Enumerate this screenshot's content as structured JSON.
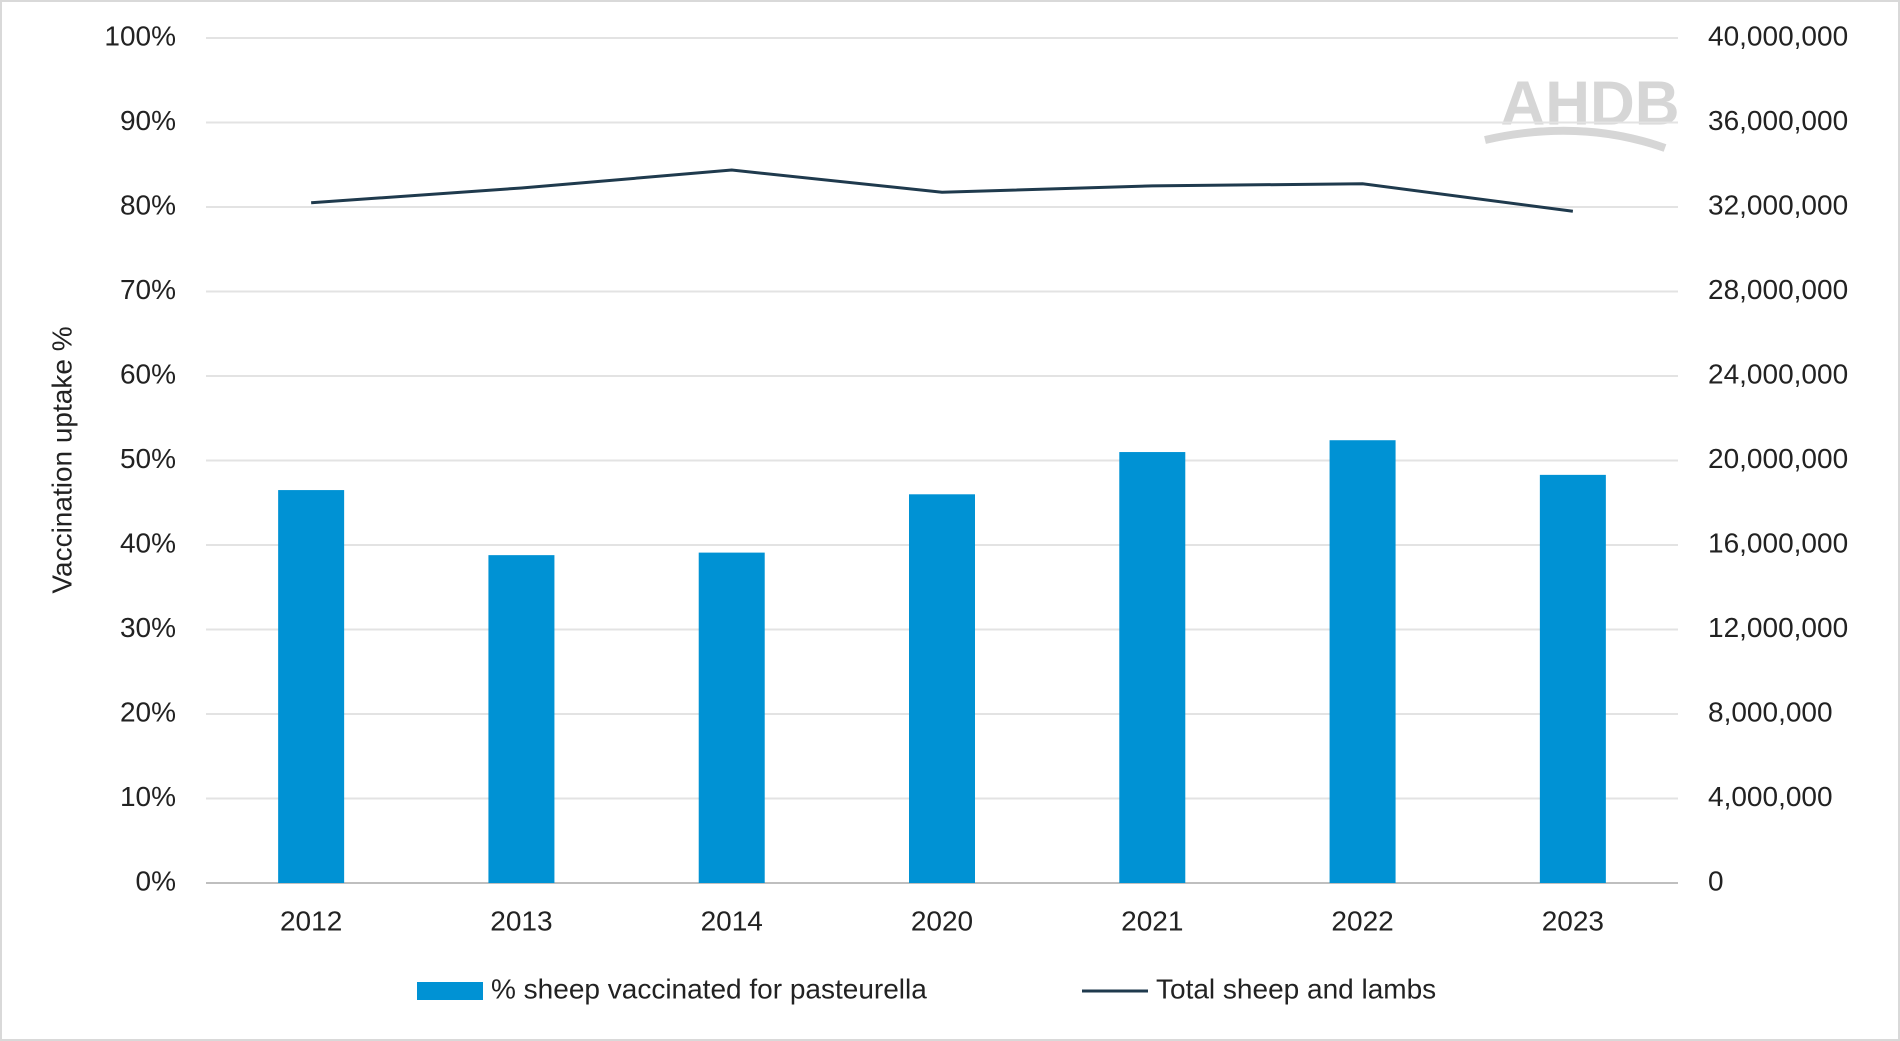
{
  "chart_data": {
    "type": "bar_line",
    "y_axis_label": "Vaccination uptake %",
    "watermark": "AHDB",
    "categories": [
      "2012",
      "2013",
      "2014",
      "2020",
      "2021",
      "2022",
      "2023"
    ],
    "series": [
      {
        "name": "% sheep vaccinated for pasteurella",
        "type": "bar",
        "color": "#0092d4",
        "values": [
          46.5,
          38.8,
          39.1,
          46.0,
          51.0,
          52.4,
          48.3
        ]
      },
      {
        "name": "Total sheep and lambs",
        "type": "line",
        "axis": "y2",
        "color": "#1f3a4d",
        "values": [
          32200000,
          32900000,
          33750000,
          32700000,
          33000000,
          33100000,
          31800000
        ]
      }
    ],
    "ylim": [
      0,
      100
    ],
    "yticks": [
      {
        "value": 0,
        "label": "0%"
      },
      {
        "value": 10,
        "label": "10%"
      },
      {
        "value": 20,
        "label": "20%"
      },
      {
        "value": 30,
        "label": "30%"
      },
      {
        "value": 40,
        "label": "40%"
      },
      {
        "value": 50,
        "label": "50%"
      },
      {
        "value": 60,
        "label": "60%"
      },
      {
        "value": 70,
        "label": "70%"
      },
      {
        "value": 80,
        "label": "80%"
      },
      {
        "value": 90,
        "label": "90%"
      },
      {
        "value": 100,
        "label": "100%"
      }
    ],
    "y2lim": [
      0,
      40000000
    ],
    "y2ticks": [
      0,
      {
        "value": 4000000,
        "label": "4,000,000"
      },
      {
        "value": 8000000,
        "label": "8,000,000"
      },
      {
        "value": 12000000,
        "label": "12,000,000"
      },
      {
        "value": 16000000,
        "label": "16,000,000"
      },
      {
        "value": 20000000,
        "label": "20,000,000"
      },
      {
        "value": 24000000,
        "label": "24,000,000"
      },
      {
        "value": 28000000,
        "label": "28,000,000"
      },
      {
        "value": 32000000,
        "label": "32,000,000"
      },
      {
        "value": 36000000,
        "label": "36,000,000"
      },
      {
        "value": 40000000,
        "label": "40,000,000"
      }
    ],
    "grid": true
  }
}
